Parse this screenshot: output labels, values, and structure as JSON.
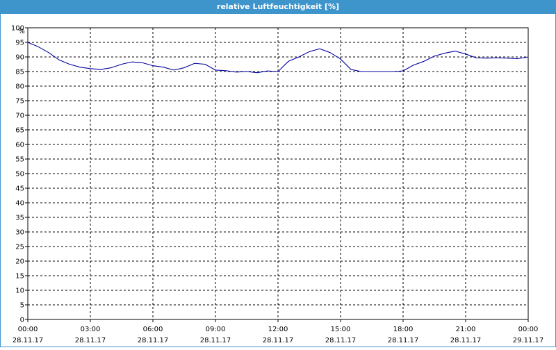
{
  "window": {
    "title": "relative Luftfeuchtigkeit [%]"
  },
  "colors": {
    "title_bar": "#3d95cc",
    "series": "#0000a0",
    "grid": "#000000"
  },
  "chart_data": {
    "type": "line",
    "title": "relative Luftfeuchtigkeit [%]",
    "ylabel": "%",
    "xlabel": "",
    "ylim": [
      0,
      100
    ],
    "yticks": [
      0,
      5,
      10,
      15,
      20,
      25,
      30,
      35,
      40,
      45,
      50,
      55,
      60,
      65,
      70,
      75,
      80,
      85,
      90,
      95,
      100
    ],
    "xlim": [
      0,
      24
    ],
    "x_unit": "hours since 28.11.17 00:00",
    "xticks": [
      {
        "time": "00:00",
        "date": "28.11.17"
      },
      {
        "time": "03:00",
        "date": "28.11.17"
      },
      {
        "time": "06:00",
        "date": "28.11.17"
      },
      {
        "time": "09:00",
        "date": "28.11.17"
      },
      {
        "time": "12:00",
        "date": "28.11.17"
      },
      {
        "time": "15:00",
        "date": "28.11.17"
      },
      {
        "time": "18:00",
        "date": "28.11.17"
      },
      {
        "time": "21:00",
        "date": "28.11.17"
      },
      {
        "time": "00:00",
        "date": "29.11.17"
      }
    ],
    "grid": true,
    "grid_style": "dashed",
    "series": [
      {
        "x": [
          0,
          0.5,
          1,
          1.5,
          2,
          2.5,
          3,
          3.5,
          4,
          4.5,
          5,
          5.5,
          6,
          6.5,
          7,
          7.5,
          8,
          8.5,
          9,
          9.5,
          10,
          10.5,
          11,
          11.5,
          12,
          12.5,
          13,
          13.5,
          14,
          14.5,
          15,
          15.5,
          16,
          16.5,
          17,
          17.5,
          18,
          18.5,
          19,
          19.5,
          20,
          20.5,
          21,
          21.5,
          22,
          22.5,
          23,
          23.5,
          24
        ],
        "y": [
          95,
          93.5,
          91.5,
          89,
          87.5,
          86.5,
          86,
          85.7,
          86.3,
          87.5,
          88.3,
          88,
          87,
          86.5,
          85.5,
          86.3,
          87.8,
          87.5,
          85.5,
          85.3,
          84.8,
          85,
          84.6,
          85.2,
          85,
          88.5,
          90,
          91.8,
          92.8,
          91.5,
          89.3,
          85.7,
          85,
          85,
          85,
          85,
          85.2,
          87.2,
          88.5,
          90.3,
          91.3,
          92,
          91,
          89.7,
          89.6,
          89.7,
          89.6,
          89.4,
          90
        ]
      }
    ]
  }
}
